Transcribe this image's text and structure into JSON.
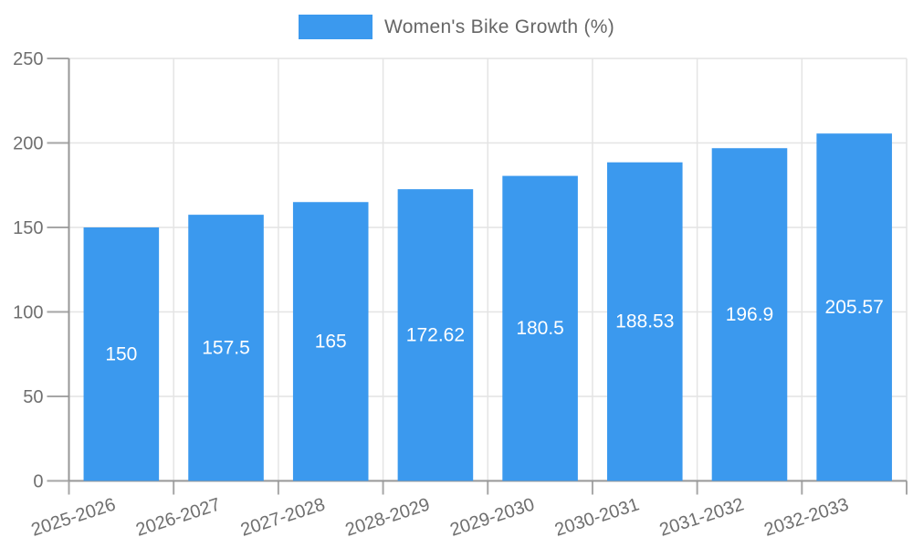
{
  "chart_data": {
    "type": "bar",
    "title": "Women's Bike Growth (%)",
    "legend": [
      "Women's Bike Growth (%)"
    ],
    "legend_position": "top-center",
    "categories": [
      "2025-2026",
      "2026-2027",
      "2027-2028",
      "2028-2029",
      "2029-2030",
      "2030-2031",
      "2031-2032",
      "2032-2033"
    ],
    "values": [
      150,
      157.5,
      165,
      172.62,
      180.5,
      188.53,
      196.9,
      205.57
    ],
    "value_labels": [
      "150",
      "157.5",
      "165",
      "172.62",
      "180.5",
      "188.53",
      "196.9",
      "205.57"
    ],
    "xlabel": "",
    "ylabel": "",
    "ylim": [
      0,
      250
    ],
    "yticks": [
      0,
      50,
      100,
      150,
      200,
      250
    ],
    "grid": true,
    "x_label_rotation_deg": -18,
    "colors": {
      "bar": "#3B99EE",
      "value_label": "#FFFFFF",
      "axis_label": "#6F6F6F",
      "legend_text": "#666666",
      "gridline": "#E4E4E4",
      "axis_line": "#979797",
      "tick": "#A6A6A6",
      "background": "#FFFFFF"
    }
  }
}
